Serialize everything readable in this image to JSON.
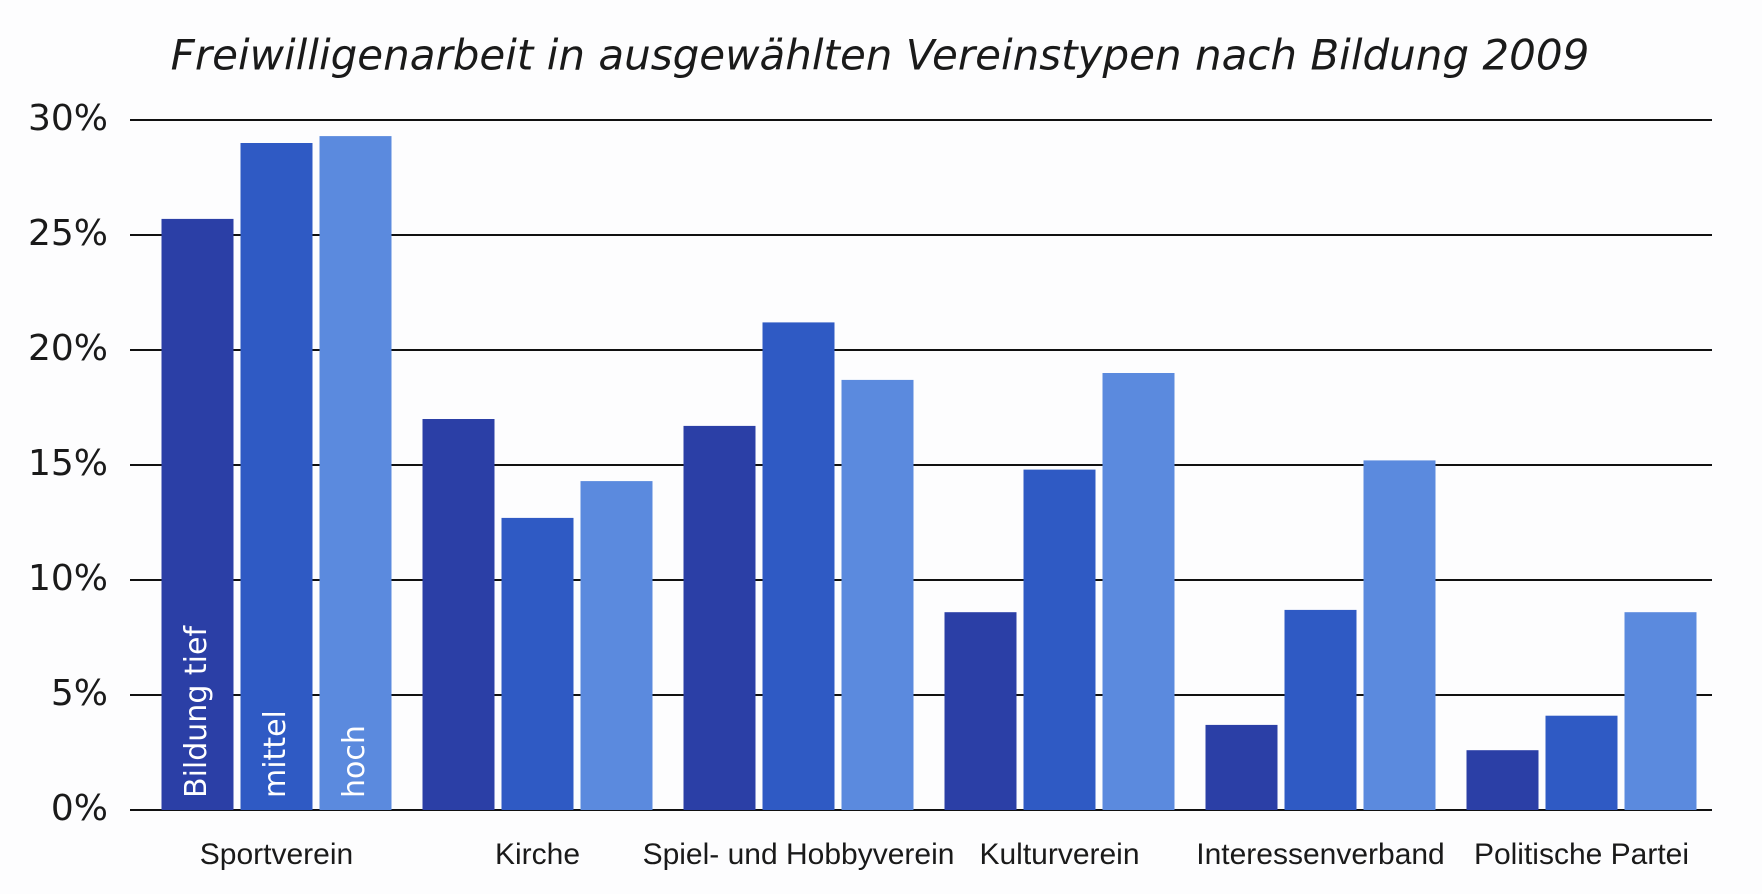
{
  "chart_data": {
    "type": "bar",
    "title": "Freiwilligenarbeit in ausgewählten Vereinstypen nach Bildung 2009",
    "categories": [
      "Sportverein",
      "Kirche",
      "Spiel- und Hobbyverein",
      "Kulturverein",
      "Interessenverband",
      "Politische Partei"
    ],
    "series": [
      {
        "name": "Bildung tief",
        "color": "#2b3fa6",
        "values": [
          25.7,
          17.0,
          16.7,
          8.6,
          3.7,
          2.6
        ]
      },
      {
        "name": "mittel",
        "color": "#2f5ac4",
        "values": [
          29.0,
          12.7,
          21.2,
          14.8,
          8.7,
          4.1
        ]
      },
      {
        "name": "hoch",
        "color": "#5b8ade",
        "values": [
          29.3,
          14.3,
          18.7,
          19.0,
          15.2,
          8.6
        ]
      }
    ],
    "ylim": [
      0,
      30
    ],
    "yticks": [
      {
        "value": 0,
        "label": "0%"
      },
      {
        "value": 5,
        "label": "5%"
      },
      {
        "value": 10,
        "label": "10%"
      },
      {
        "value": 15,
        "label": "15%"
      },
      {
        "value": 20,
        "label": "20%"
      },
      {
        "value": 25,
        "label": "25%"
      },
      {
        "value": 30,
        "label": "30%"
      }
    ],
    "grid": true
  }
}
